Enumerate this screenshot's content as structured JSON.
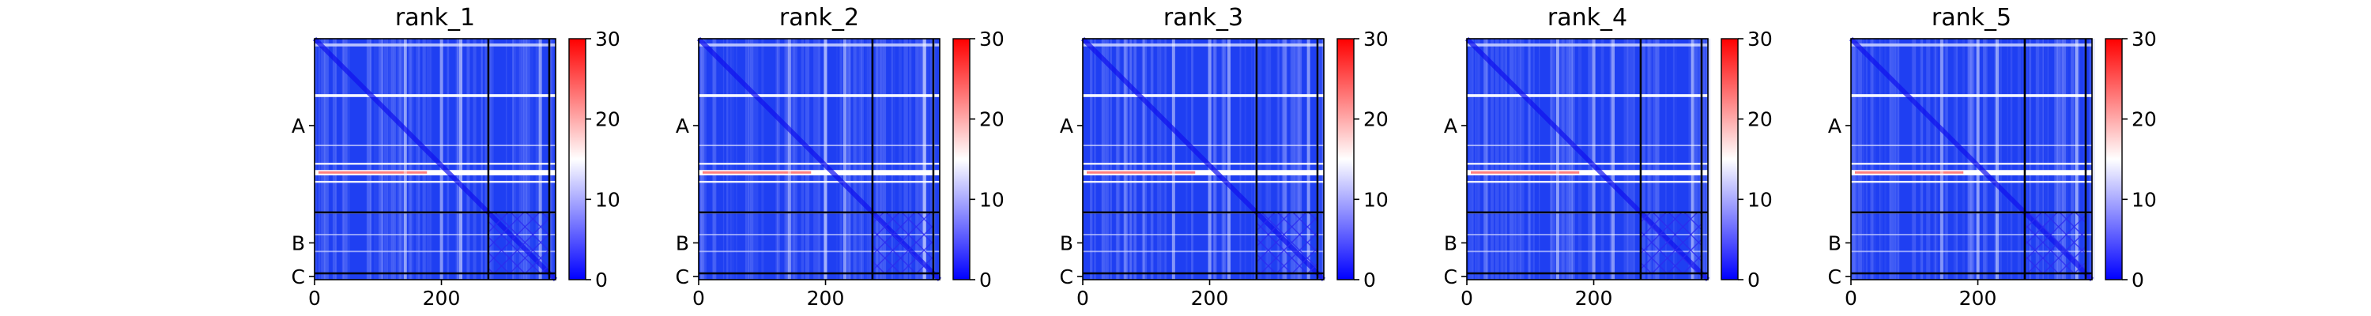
{
  "chart_data": {
    "type": "heatmap",
    "description_note": "Predicted aligned error style heatmaps, one per model rank",
    "panels": [
      {
        "title": "rank_1"
      },
      {
        "title": "rank_2"
      },
      {
        "title": "rank_3"
      },
      {
        "title": "rank_4"
      },
      {
        "title": "rank_5"
      }
    ],
    "matrix_size": 380,
    "chain_boundaries": [
      274,
      370
    ],
    "y_tick_labels": [
      "A",
      "B",
      "C"
    ],
    "y_tick_positions": [
      137,
      322,
      375
    ],
    "x_ticks": [
      0,
      200
    ],
    "x_tick_labels": [
      "0",
      "200"
    ],
    "colorbar": {
      "ticks": [
        0,
        10,
        20,
        30
      ],
      "tick_labels": [
        "0",
        "10",
        "20",
        "30"
      ],
      "range": [
        0,
        30
      ],
      "colors": [
        "#0000ff",
        "#ffffff",
        "#ff0000"
      ]
    }
  }
}
